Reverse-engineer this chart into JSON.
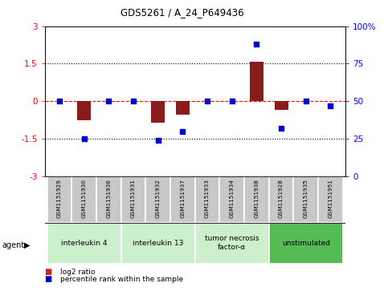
{
  "title": "GDS5261 / A_24_P649436",
  "samples": [
    "GSM1151929",
    "GSM1151930",
    "GSM1151936",
    "GSM1151931",
    "GSM1151932",
    "GSM1151937",
    "GSM1151933",
    "GSM1151934",
    "GSM1151938",
    "GSM1151928",
    "GSM1151935",
    "GSM1151951"
  ],
  "log2_ratio": [
    0.0,
    -0.75,
    0.0,
    0.0,
    -0.85,
    -0.55,
    0.0,
    0.0,
    1.58,
    -0.35,
    0.0,
    0.0
  ],
  "percentile": [
    50,
    25,
    50,
    50,
    24,
    30,
    50,
    50,
    88,
    32,
    50,
    47
  ],
  "ylim_left": [
    -3,
    3
  ],
  "ylim_right": [
    0,
    100
  ],
  "yticks_left": [
    -3,
    -1.5,
    0,
    1.5,
    3
  ],
  "yticks_right": [
    0,
    25,
    50,
    75,
    100
  ],
  "ytick_labels_left": [
    "-3",
    "-1.5",
    "0",
    "1.5",
    "3"
  ],
  "ytick_labels_right": [
    "0",
    "25",
    "50",
    "75",
    "100%"
  ],
  "hlines": [
    {
      "y": -1.5,
      "style": "dotted",
      "color": "black",
      "lw": 0.8
    },
    {
      "y": 0.0,
      "style": "dashed",
      "color": "red",
      "lw": 0.8
    },
    {
      "y": 1.5,
      "style": "dotted",
      "color": "black",
      "lw": 0.8
    }
  ],
  "agents": [
    {
      "label": "interleukin 4",
      "start": 0,
      "end": 2,
      "color": "#ccf0cc"
    },
    {
      "label": "interleukin 13",
      "start": 3,
      "end": 5,
      "color": "#ccf0cc"
    },
    {
      "label": "tumor necrosis\nfactor-α",
      "start": 6,
      "end": 8,
      "color": "#ccf0cc"
    },
    {
      "label": "unstimulated",
      "start": 9,
      "end": 11,
      "color": "#55bb55"
    }
  ],
  "bar_color": "#8b1a1a",
  "dot_color": "#0000cc",
  "bar_width": 0.55,
  "legend_items": [
    {
      "color": "#cc2222",
      "label": "log2 ratio"
    },
    {
      "color": "#0000cc",
      "label": "percentile rank within the sample"
    }
  ],
  "agent_label": "agent",
  "bg_plot": "#ffffff",
  "bg_sample": "#c8c8c8",
  "bg_fig": "#ffffff"
}
